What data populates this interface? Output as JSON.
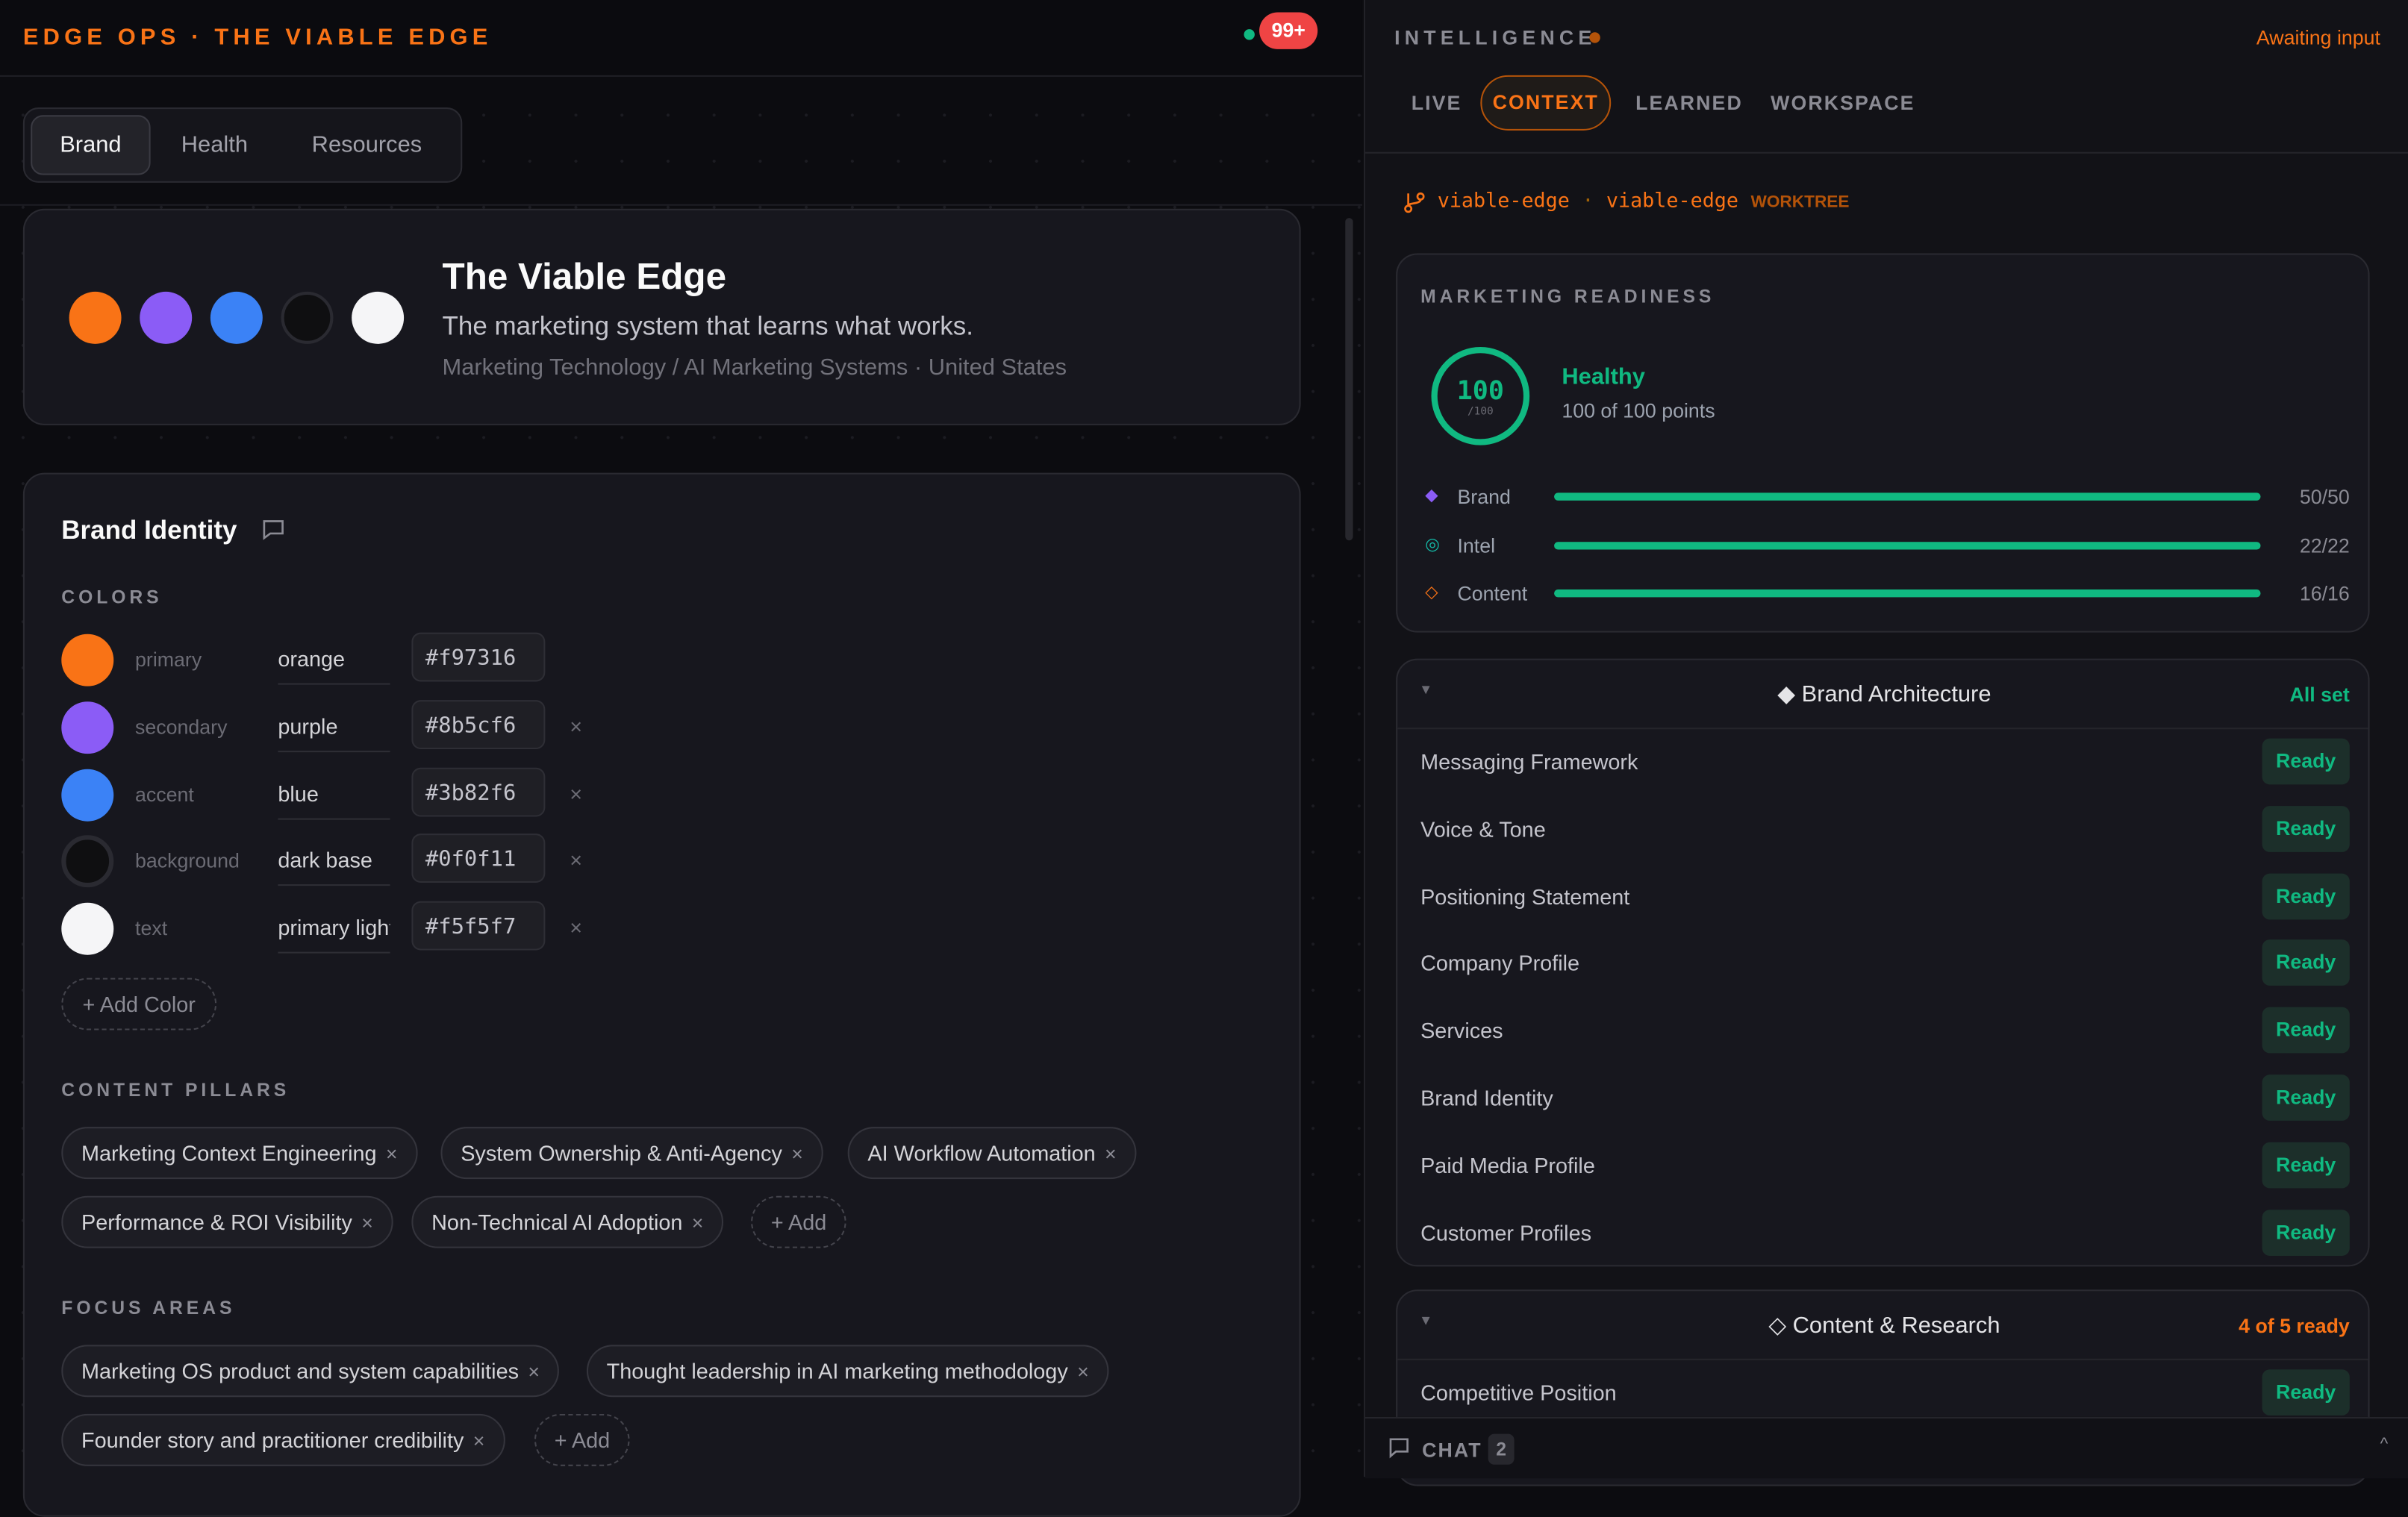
{
  "header": {
    "title": "EDGE OPS · THE VIABLE EDGE",
    "notification_count": "99+"
  },
  "tabs": [
    {
      "label": "Brand",
      "active": true
    },
    {
      "label": "Health"
    },
    {
      "label": "Resources"
    }
  ],
  "hero": {
    "name": "The Viable Edge",
    "tagline": "The marketing system that learns what works.",
    "meta": "Marketing Technology / AI Marketing Systems · United States",
    "swatches": [
      "#f97316",
      "#8b5cf6",
      "#3b82f6",
      "#0f0f11",
      "#f5f5f7"
    ]
  },
  "identity": {
    "title": "Brand Identity",
    "colors_label": "COLORS",
    "colors": [
      {
        "role": "primary",
        "name": "orange",
        "hex": "#f97316"
      },
      {
        "role": "secondary",
        "name": "purple",
        "hex": "#8b5cf6"
      },
      {
        "role": "accent",
        "name": "blue",
        "hex": "#3b82f6"
      },
      {
        "role": "background",
        "name": "dark base",
        "hex": "#0f0f11"
      },
      {
        "role": "text",
        "name": "primary light",
        "hex": "#f5f5f7"
      }
    ],
    "add_color": "+ Add Color",
    "pillars_label": "CONTENT PILLARS",
    "pillars": [
      "Marketing Context Engineering",
      "System Ownership & Anti-Agency",
      "AI Workflow Automation",
      "Performance & ROI Visibility",
      "Non-Technical AI Adoption"
    ],
    "add": "+ Add",
    "focus_label": "FOCUS AREAS",
    "focus": [
      "Marketing OS product and system capabilities",
      "Thought leadership in AI marketing methodology",
      "Founder story and practitioner credibility"
    ],
    "remove": "×"
  },
  "intel": {
    "title": "INTELLIGENCE",
    "status": "Awaiting input",
    "tabs": [
      {
        "label": "LIVE"
      },
      {
        "label": "CONTEXT",
        "active": true
      },
      {
        "label": "LEARNED"
      },
      {
        "label": "WORKSPACE"
      }
    ],
    "worktree": {
      "repo": "viable-edge",
      "sep": "·",
      "branch": "viable-edge",
      "tag": "WORKTREE"
    },
    "readiness": {
      "title": "MARKETING READINESS",
      "score": "100",
      "max": "/100",
      "status": "Healthy",
      "points": "100 of 100 points",
      "bars": [
        {
          "label": "Brand",
          "value": "50/50",
          "fraction": 1,
          "icon": "diamond-filled",
          "color": "#8b5cf6"
        },
        {
          "label": "Intel",
          "value": "22/22",
          "fraction": 1,
          "icon": "target",
          "color": "#14b8a6"
        },
        {
          "label": "Content",
          "value": "16/16",
          "fraction": 1,
          "icon": "diamond-outline",
          "color": "#f97316"
        }
      ]
    },
    "sections": [
      {
        "title": "◆ Brand Architecture",
        "status": "All set",
        "status_color": "#10b981",
        "items": [
          {
            "label": "Messaging Framework",
            "status": "Ready"
          },
          {
            "label": "Voice & Tone",
            "status": "Ready"
          },
          {
            "label": "Positioning Statement",
            "status": "Ready"
          },
          {
            "label": "Company Profile",
            "status": "Ready"
          },
          {
            "label": "Services",
            "status": "Ready"
          },
          {
            "label": "Brand Identity",
            "status": "Ready"
          },
          {
            "label": "Paid Media Profile",
            "status": "Ready"
          },
          {
            "label": "Customer Profiles",
            "status": "Ready"
          }
        ]
      },
      {
        "title": "◇ Content & Research",
        "status": "4 of 5 ready",
        "status_color": "#f97316",
        "items": [
          {
            "label": "Competitive Position",
            "status": "Ready"
          }
        ]
      }
    ],
    "chat": {
      "label": "CHAT",
      "count": "2"
    }
  },
  "colors": {
    "accent": "#f97316",
    "success": "#10b981",
    "danger": "#ef4444"
  }
}
